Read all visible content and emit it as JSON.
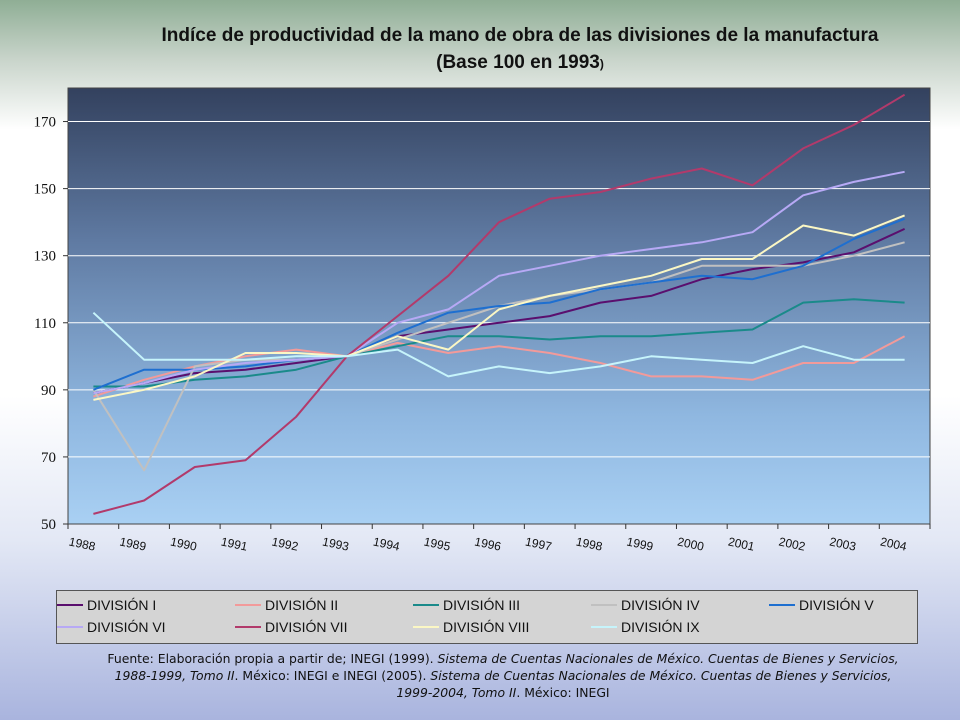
{
  "title_main": "Indíce de productividad de la mano de obra de las divisiones de la manufactura (Base 100 en 1993",
  "title_paren": ")",
  "source": {
    "p1": "Fuente: Elaboración propia a partir de; INEGI (1999). ",
    "i1": "Sistema de Cuentas Nacionales de México. Cuentas de Bienes y Servicios, 1988-1999, Tomo II",
    "p2": ". México: INEGI e INEGI (2005). ",
    "i2": "Sistema de Cuentas Nacionales de México. Cuentas de Bienes y Servicios, 1999-2004, Tomo II",
    "p3": ". México: INEGI"
  },
  "chart_data": {
    "type": "line",
    "x": [
      "1988",
      "1989",
      "1990",
      "1991",
      "1992",
      "1993",
      "1994",
      "1995",
      "1996",
      "1997",
      "1998",
      "1999",
      "2000",
      "2001",
      "2002",
      "2003",
      "2004"
    ],
    "ylim": [
      50,
      180
    ],
    "yticks": [
      50,
      70,
      90,
      110,
      130,
      150,
      170
    ],
    "grid": true,
    "legend_position": "bottom",
    "series": [
      {
        "name": "DIVISIÓN I",
        "color": "#5a0f6e",
        "values": [
          89,
          92,
          95,
          96,
          98,
          100,
          106,
          108,
          110,
          112,
          116,
          118,
          123,
          126,
          128,
          131,
          138
        ]
      },
      {
        "name": "DIVISIÓN II",
        "color": "#f29a9a",
        "values": [
          88,
          93,
          97,
          100,
          102,
          100,
          104,
          101,
          103,
          101,
          98,
          94,
          94,
          93,
          98,
          98,
          106
        ]
      },
      {
        "name": "DIVISIÓN III",
        "color": "#1a8a8a",
        "values": [
          91,
          91,
          93,
          94,
          96,
          100,
          103,
          106,
          106,
          105,
          106,
          106,
          107,
          108,
          116,
          117,
          116
        ]
      },
      {
        "name": "DIVISIÓN IV",
        "color": "#c0c0c0",
        "values": [
          90,
          66,
          97,
          99,
          99,
          100,
          105,
          110,
          115,
          118,
          120,
          122,
          127,
          127,
          127,
          130,
          134
        ]
      },
      {
        "name": "DIVISIÓN V",
        "color": "#1e6fd0",
        "values": [
          90,
          96,
          96,
          97,
          99,
          100,
          107,
          113,
          115,
          116,
          120,
          122,
          124,
          123,
          127,
          135,
          141
        ]
      },
      {
        "name": "DIVISIÓN VI",
        "color": "#b7a9f5",
        "values": [
          89,
          92,
          96,
          98,
          99,
          100,
          110,
          114,
          124,
          127,
          130,
          132,
          134,
          137,
          148,
          152,
          155
        ]
      },
      {
        "name": "DIVISIÓN VII",
        "color": "#b23a6b",
        "values": [
          53,
          57,
          67,
          69,
          82,
          100,
          112,
          124,
          140,
          147,
          149,
          153,
          156,
          151,
          162,
          169,
          178
        ]
      },
      {
        "name": "DIVISIÓN VIII",
        "color": "#fbf7c4",
        "values": [
          87,
          90,
          94,
          101,
          101,
          100,
          106,
          102,
          114,
          118,
          121,
          124,
          129,
          129,
          139,
          136,
          142
        ]
      },
      {
        "name": "DIVISIÓN IX",
        "color": "#c6f4fb",
        "values": [
          113,
          99,
          99,
          99,
          100,
          100,
          102,
          94,
          97,
          95,
          97,
          100,
          99,
          98,
          103,
          99,
          99
        ]
      }
    ]
  }
}
